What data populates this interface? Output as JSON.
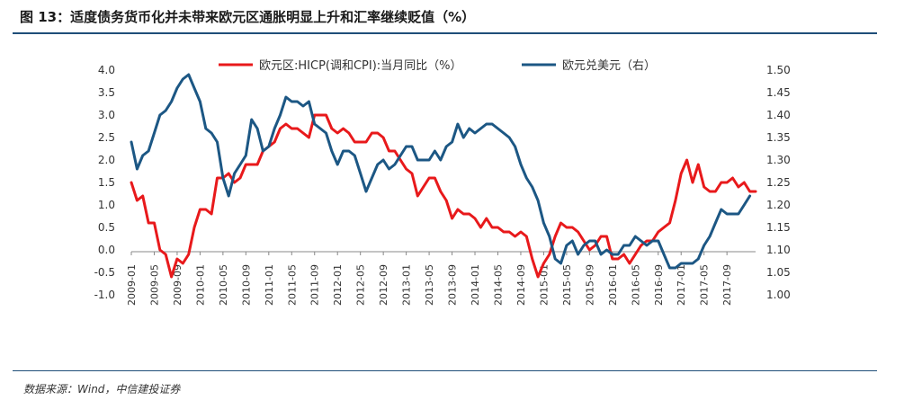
{
  "page": {
    "title": "图 13：适度债务货币化并未带来欧元区通胀明显上升和汇率继续贬值（%）",
    "source": "数据来源：Wind，中信建投证券"
  },
  "chart_data": {
    "type": "line",
    "title": "",
    "xlabel": "",
    "ylabel": "",
    "x_ticks": [
      "2009-01",
      "2009-05",
      "2009-09",
      "2010-01",
      "2010-05",
      "2010-09",
      "2011-01",
      "2011-05",
      "2011-09",
      "2012-01",
      "2012-05",
      "2012-09",
      "2013-01",
      "2013-05",
      "2013-09",
      "2014-01",
      "2014-05",
      "2014-09",
      "2015-01",
      "2015-05",
      "2015-09",
      "2016-01",
      "2016-05",
      "2016-09",
      "2017-01",
      "2017-05",
      "2017-09"
    ],
    "y_left": {
      "range": [
        -1.0,
        4.0
      ],
      "ticks": [
        "4.0",
        "3.5",
        "3.0",
        "2.5",
        "2.0",
        "1.5",
        "1.0",
        "0.5",
        "0.0",
        "-0.5",
        "-1.0"
      ]
    },
    "y_right": {
      "range": [
        1.0,
        1.5
      ],
      "ticks": [
        "1.50",
        "1.45",
        "1.40",
        "1.35",
        "1.30",
        "1.25",
        "1.20",
        "1.15",
        "1.10",
        "1.05",
        "1.00"
      ]
    },
    "legend_position": "top",
    "grid": false,
    "series": [
      {
        "name": "欧元区:HICP(调和CPI):当月同比（%）",
        "axis": "left",
        "color": "#e8191b",
        "start": "2009-01",
        "values": [
          1.5,
          1.1,
          1.2,
          0.6,
          0.6,
          0.0,
          -0.1,
          -0.6,
          -0.2,
          -0.3,
          -0.1,
          0.5,
          0.9,
          0.9,
          0.8,
          1.6,
          1.6,
          1.7,
          1.5,
          1.6,
          1.9,
          1.9,
          1.9,
          2.2,
          2.3,
          2.4,
          2.7,
          2.8,
          2.7,
          2.7,
          2.6,
          2.5,
          3.0,
          3.0,
          3.0,
          2.7,
          2.6,
          2.7,
          2.6,
          2.4,
          2.4,
          2.4,
          2.6,
          2.6,
          2.5,
          2.2,
          2.2,
          2.0,
          1.8,
          1.7,
          1.2,
          1.4,
          1.6,
          1.6,
          1.3,
          1.1,
          0.7,
          0.9,
          0.8,
          0.8,
          0.7,
          0.5,
          0.7,
          0.5,
          0.5,
          0.4,
          0.4,
          0.3,
          0.4,
          0.3,
          -0.2,
          -0.6,
          -0.3,
          -0.1,
          0.3,
          0.6,
          0.5,
          0.5,
          0.4,
          0.2,
          0.0,
          0.1,
          0.3,
          0.3,
          -0.2,
          -0.2,
          -0.1,
          -0.3,
          -0.1,
          0.1,
          0.2,
          0.2,
          0.4,
          0.5,
          0.6,
          1.1,
          1.7,
          2.0,
          1.5,
          1.9,
          1.4,
          1.3,
          1.3,
          1.5,
          1.5,
          1.6,
          1.4,
          1.5,
          1.3,
          1.3
        ]
      },
      {
        "name": "欧元兑美元（右）",
        "axis": "right",
        "color": "#1c5784",
        "start": "2009-01",
        "values": [
          1.34,
          1.28,
          1.31,
          1.32,
          1.36,
          1.4,
          1.41,
          1.43,
          1.46,
          1.48,
          1.49,
          1.46,
          1.43,
          1.37,
          1.36,
          1.34,
          1.26,
          1.22,
          1.27,
          1.29,
          1.31,
          1.39,
          1.37,
          1.32,
          1.33,
          1.37,
          1.4,
          1.44,
          1.43,
          1.43,
          1.42,
          1.43,
          1.38,
          1.37,
          1.36,
          1.32,
          1.29,
          1.32,
          1.32,
          1.31,
          1.27,
          1.23,
          1.26,
          1.29,
          1.3,
          1.28,
          1.29,
          1.31,
          1.33,
          1.33,
          1.3,
          1.3,
          1.3,
          1.32,
          1.3,
          1.33,
          1.34,
          1.38,
          1.35,
          1.37,
          1.36,
          1.37,
          1.38,
          1.38,
          1.37,
          1.36,
          1.35,
          1.33,
          1.29,
          1.26,
          1.24,
          1.21,
          1.16,
          1.13,
          1.08,
          1.07,
          1.11,
          1.12,
          1.09,
          1.11,
          1.12,
          1.12,
          1.09,
          1.1,
          1.09,
          1.09,
          1.11,
          1.11,
          1.13,
          1.12,
          1.11,
          1.12,
          1.12,
          1.09,
          1.06,
          1.06,
          1.07,
          1.07,
          1.07,
          1.08,
          1.11,
          1.13,
          1.16,
          1.19,
          1.18,
          1.18,
          1.18,
          1.2,
          1.22
        ]
      }
    ]
  }
}
